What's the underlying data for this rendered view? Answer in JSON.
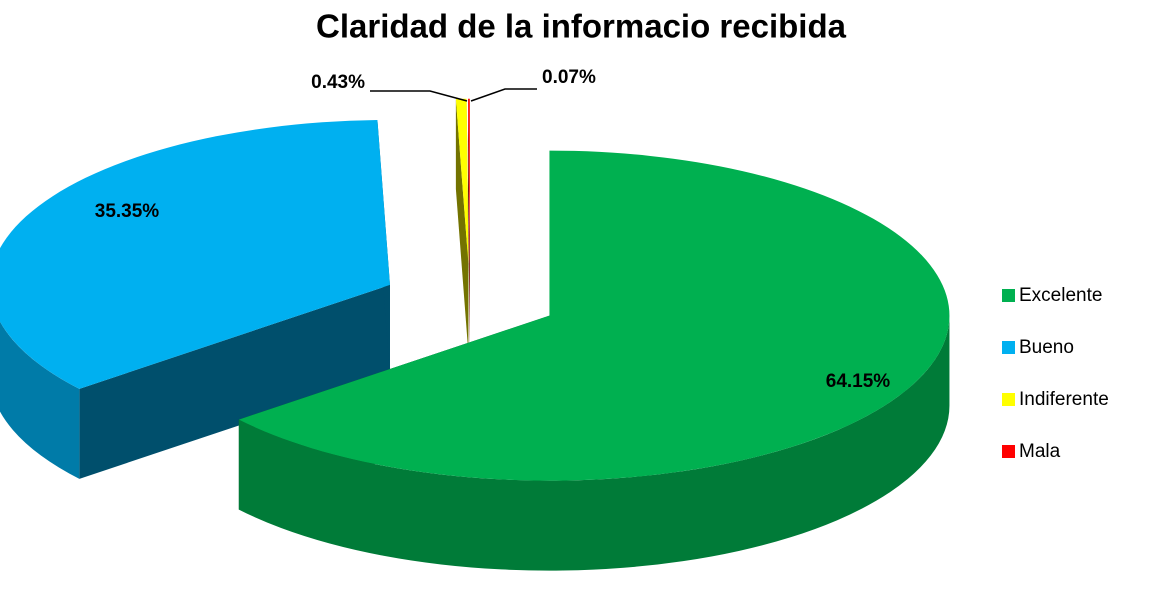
{
  "chart_data": {
    "type": "pie",
    "title": "Claridad de la informacio recibida",
    "categories": [
      "Excelente",
      "Bueno",
      "Indiferente",
      "Mala"
    ],
    "values": [
      64.15,
      35.35,
      0.43,
      0.07
    ],
    "value_labels": [
      "64.15%",
      "35.35%",
      "0.43%",
      "0.07%"
    ],
    "colors": [
      "#00b050",
      "#00b0f0",
      "#ffff00",
      "#ff0000"
    ],
    "legend": "right"
  }
}
